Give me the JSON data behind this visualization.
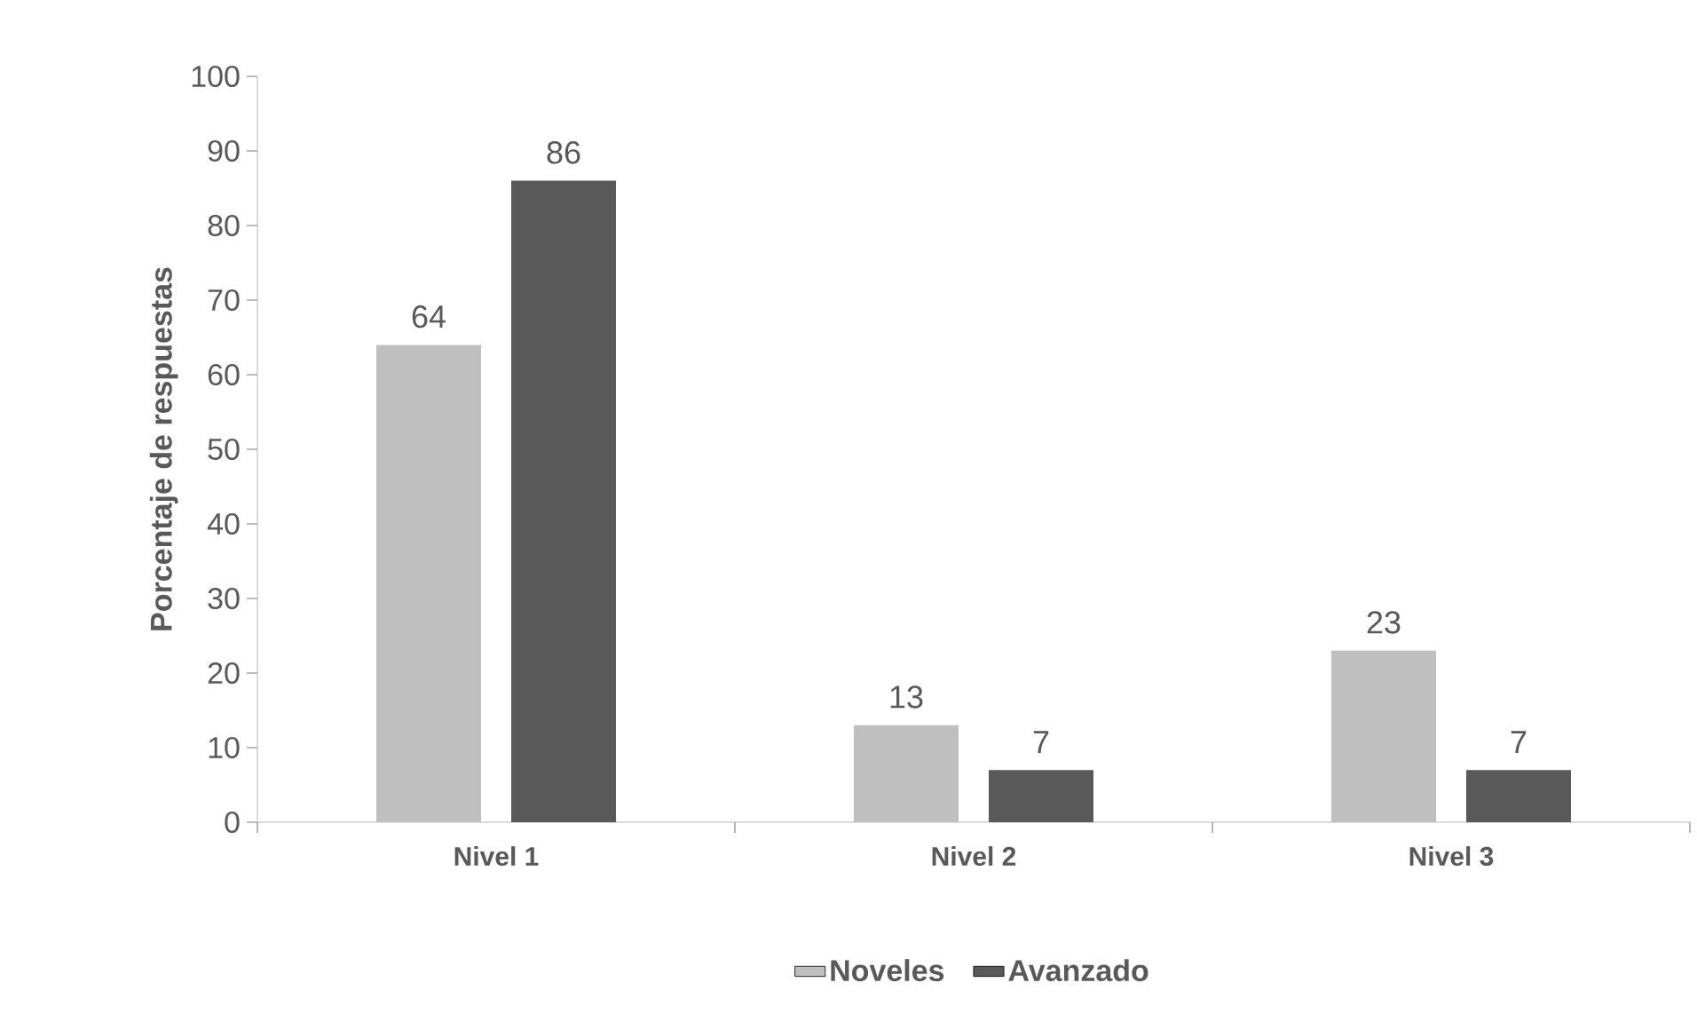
{
  "chart_data": {
    "type": "bar",
    "ylabel": "Porcentaje de respuestas",
    "categories": [
      "Nivel 1",
      "Nivel 2",
      "Nivel 3"
    ],
    "series": [
      {
        "name": "Noveles",
        "color": "#bfbfbf",
        "values": [
          64,
          13,
          23
        ]
      },
      {
        "name": "Avanzado",
        "color": "#595959",
        "values": [
          86,
          7,
          7
        ]
      }
    ],
    "ylim": [
      0,
      100
    ],
    "yticks": [
      0,
      10,
      20,
      30,
      40,
      50,
      60,
      70,
      80,
      90,
      100
    ],
    "data_labels": true,
    "legend": "bottom"
  }
}
